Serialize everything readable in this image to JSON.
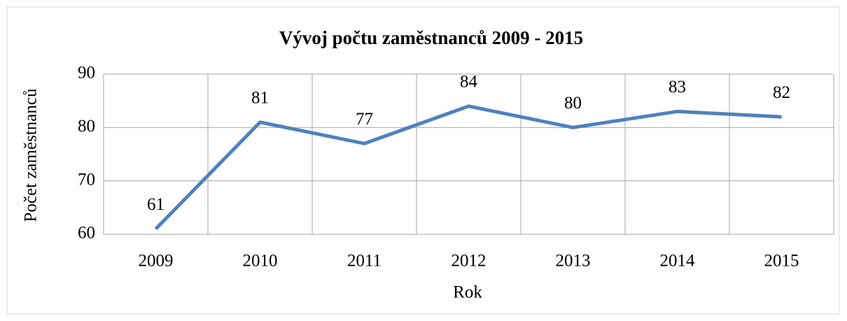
{
  "chart_data": {
    "type": "line",
    "title": "Vývoj počtu zaměstnanců 2009 - 2015",
    "x_label": "Rok",
    "y_label": "Počet zaměstnanců",
    "categories": [
      "2009",
      "2010",
      "2011",
      "2012",
      "2013",
      "2014",
      "2015"
    ],
    "series": [
      {
        "name": "Počet zaměstnanců",
        "color": "#4f81bd",
        "values": [
          61,
          81,
          77,
          84,
          80,
          83,
          82
        ]
      }
    ],
    "ylim": [
      60,
      90
    ],
    "yticks": [
      60,
      70,
      80,
      90
    ],
    "grid": true
  }
}
